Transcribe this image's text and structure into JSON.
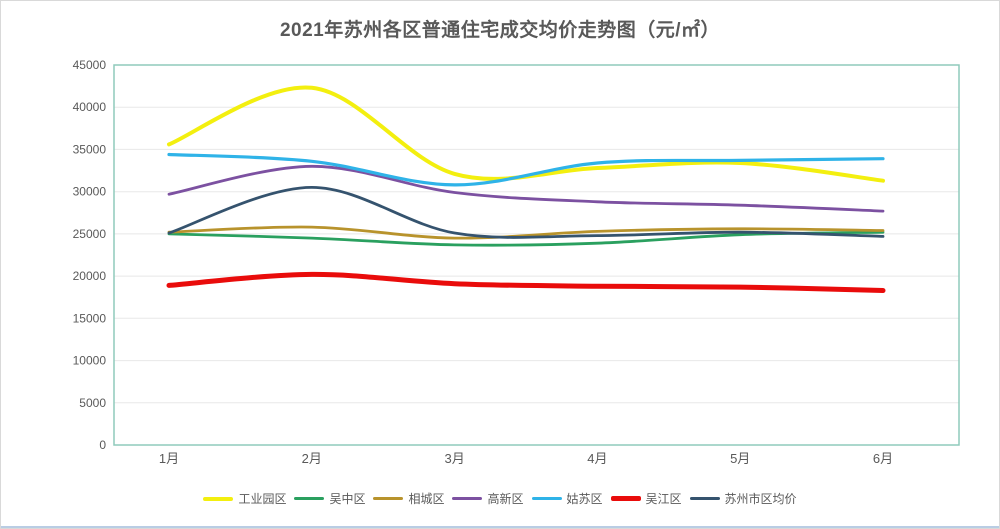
{
  "page": {
    "title": "2021年苏州各区普通住宅成交均价走势图（元/㎡）"
  },
  "colors": {
    "title_text": "#595959",
    "axis_text": "#595959",
    "gridline": "#e8e8e8",
    "plot_border": "#8fcabc",
    "bottom_divider": "#b9cde4"
  },
  "chart_data": {
    "type": "line",
    "title": "2021年苏州各区普通住宅成交均价走势图（元/㎡）",
    "xlabel": "",
    "ylabel": "",
    "categories": [
      "1月",
      "2月",
      "3月",
      "4月",
      "5月",
      "6月"
    ],
    "ylim": [
      0,
      45000
    ],
    "ytick_step": 5000,
    "yticks": [
      0,
      5000,
      10000,
      15000,
      20000,
      25000,
      30000,
      35000,
      40000,
      45000
    ],
    "grid": true,
    "smooth": true,
    "legend_position": "bottom",
    "series": [
      {
        "name": "工业园区",
        "color": "#f3ef0f",
        "thickness": 4,
        "values": [
          35600,
          42300,
          32100,
          32800,
          33400,
          31300
        ]
      },
      {
        "name": "吴中区",
        "color": "#2aa05f",
        "thickness": 2.8,
        "values": [
          25000,
          24500,
          23700,
          23900,
          24900,
          25200
        ]
      },
      {
        "name": "相城区",
        "color": "#b8932c",
        "thickness": 2.8,
        "values": [
          25200,
          25800,
          24500,
          25300,
          25600,
          25400
        ]
      },
      {
        "name": "高新区",
        "color": "#7c51a1",
        "thickness": 2.8,
        "values": [
          29700,
          33000,
          29900,
          28800,
          28400,
          27700
        ]
      },
      {
        "name": "姑苏区",
        "color": "#2fb3e8",
        "thickness": 3.2,
        "values": [
          34400,
          33600,
          30800,
          33400,
          33700,
          33900
        ]
      },
      {
        "name": "吴江区",
        "color": "#e90c0b",
        "thickness": 5,
        "values": [
          18900,
          20200,
          19100,
          18800,
          18700,
          18300
        ]
      },
      {
        "name": "苏州市区均价",
        "color": "#35536e",
        "thickness": 2.8,
        "values": [
          25100,
          30500,
          25100,
          24800,
          25200,
          24700
        ]
      }
    ]
  }
}
